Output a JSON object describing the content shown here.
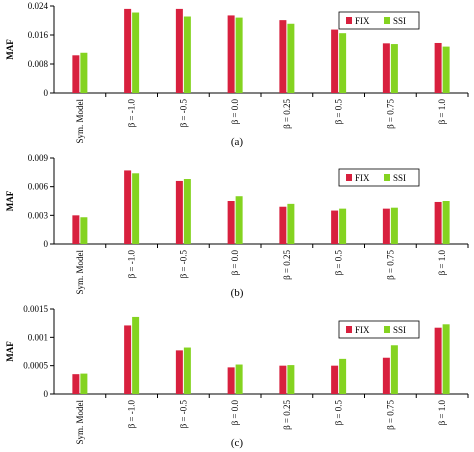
{
  "colors": {
    "FIX": "#d8203e",
    "SSI": "#84d320"
  },
  "chart_data": [
    {
      "type": "bar",
      "caption": "(a)",
      "ylabel": "MAF",
      "categories": [
        "Sym. Model",
        "β = -1.0",
        "β = -0.5",
        "β = 0.0",
        "β = 0.25",
        "β = 0.5",
        "β = 0.75",
        "β = 1.0"
      ],
      "series": [
        {
          "name": "FIX",
          "values": [
            0.0104,
            0.0232,
            0.0232,
            0.0214,
            0.0201,
            0.0175,
            0.0137,
            0.0138
          ]
        },
        {
          "name": "SSI",
          "values": [
            0.0111,
            0.0222,
            0.0211,
            0.0208,
            0.0191,
            0.0165,
            0.0135,
            0.0128
          ]
        }
      ],
      "ylim": [
        0,
        0.024
      ],
      "yticks": [
        "0",
        "0.008",
        "0.016",
        "0.024"
      ],
      "legend": "top-right",
      "grid": false
    },
    {
      "type": "bar",
      "caption": "(b)",
      "ylabel": "MAF",
      "categories": [
        "Sym. Model",
        "β = -1.0",
        "β = -0.5",
        "β = 0.0",
        "β = 0.25",
        "β = 0.5",
        "β = 0.75",
        "β = 1.0"
      ],
      "series": [
        {
          "name": "FIX",
          "values": [
            0.003,
            0.0077,
            0.0066,
            0.0045,
            0.0039,
            0.0035,
            0.0037,
            0.0044
          ]
        },
        {
          "name": "SSI",
          "values": [
            0.0028,
            0.0074,
            0.0068,
            0.005,
            0.0042,
            0.0037,
            0.0038,
            0.0045
          ]
        }
      ],
      "ylim": [
        0,
        0.009
      ],
      "yticks": [
        "0",
        "0.003",
        "0.006",
        "0.009"
      ],
      "legend": "top-right",
      "grid": false
    },
    {
      "type": "bar",
      "caption": "(c)",
      "ylabel": "MAF",
      "categories": [
        "Sym. Model",
        "β = -1.0",
        "β = -0.5",
        "β = 0.0",
        "β = 0.25",
        "β = 0.5",
        "β = 0.75",
        "β = 1.0"
      ],
      "series": [
        {
          "name": "FIX",
          "values": [
            0.00035,
            0.00121,
            0.00077,
            0.00047,
            0.0005,
            0.0005,
            0.00064,
            0.00117
          ]
        },
        {
          "name": "SSI",
          "values": [
            0.00036,
            0.00136,
            0.00082,
            0.00052,
            0.00051,
            0.00062,
            0.00086,
            0.00123
          ]
        }
      ],
      "ylim": [
        0,
        0.0015
      ],
      "yticks": [
        "0",
        "0.0005",
        "0.001",
        "0.0015"
      ],
      "legend": "top-right",
      "grid": false
    }
  ]
}
